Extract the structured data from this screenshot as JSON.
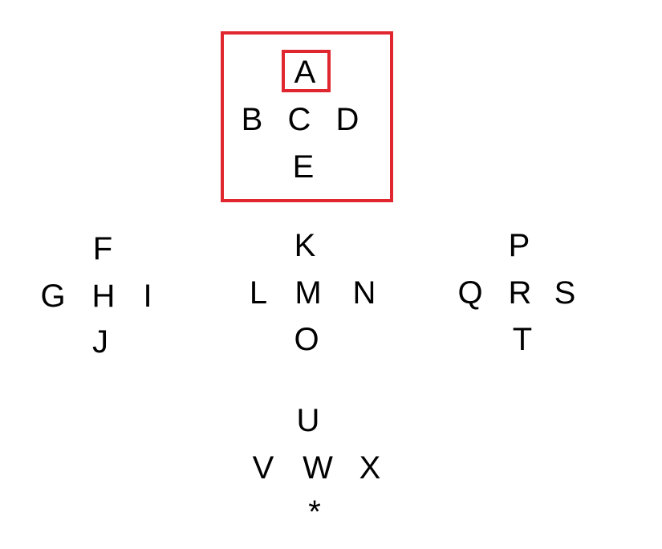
{
  "highlight_color": "#e0262e",
  "clusters": {
    "top": {
      "up": "A",
      "left": "B",
      "center": "C",
      "right": "D",
      "down": "E"
    },
    "left": {
      "up": "F",
      "left": "G",
      "center": "H",
      "right": "I",
      "down": "J"
    },
    "middle": {
      "up": "K",
      "left": "L",
      "center": "M",
      "right": "N",
      "down": "O"
    },
    "right": {
      "up": "P",
      "left": "Q",
      "center": "R",
      "right": "S",
      "down": "T"
    },
    "bottom": {
      "up": "U",
      "left": "V",
      "center": "W",
      "right": "X",
      "down": "*"
    }
  },
  "selection": {
    "cluster": "top",
    "letter": "A"
  }
}
